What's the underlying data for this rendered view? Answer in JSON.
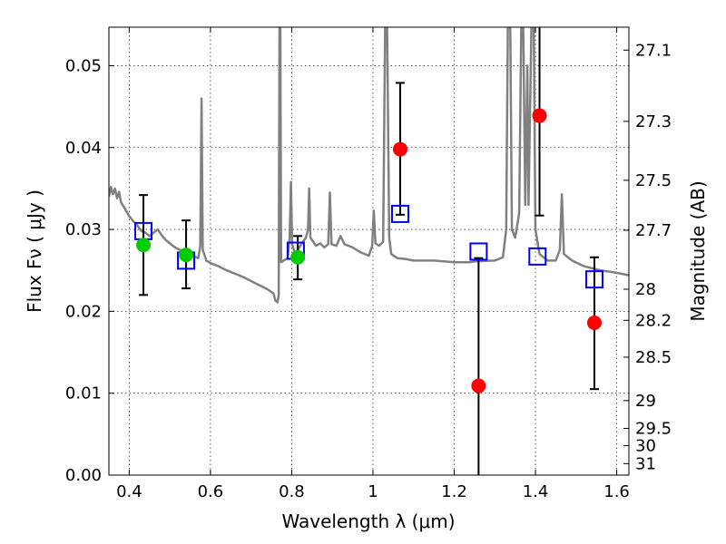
{
  "chart_data": {
    "type": "scatter",
    "xlabel": "Wavelength  λ (μm)",
    "ylabel": "Flux  Fν  ( μJy )",
    "y2label": "Magnitude (AB)",
    "xlim": [
      0.35,
      1.63
    ],
    "ylim": [
      0.0,
      0.0547
    ],
    "x_ticks": [
      0.4,
      0.6,
      0.8,
      1.0,
      1.2,
      1.4,
      1.6
    ],
    "x_tick_labels": [
      "0.4",
      "0.6",
      "0.8",
      "1",
      "1.2",
      "1.4",
      "1.6"
    ],
    "y_ticks": [
      0.0,
      0.01,
      0.02,
      0.03,
      0.04,
      0.05
    ],
    "y_tick_labels": [
      "0.00",
      "0.01",
      "0.02",
      "0.03",
      "0.04",
      "0.05"
    ],
    "y2_ticks": [
      {
        "label": "27.1",
        "flux": 0.0519
      },
      {
        "label": "27.3",
        "flux": 0.0432
      },
      {
        "label": "27.5",
        "flux": 0.036
      },
      {
        "label": "27.7",
        "flux": 0.0299
      },
      {
        "label": "28",
        "flux": 0.0227
      },
      {
        "label": "28.2",
        "flux": 0.0189
      },
      {
        "label": "28.5",
        "flux": 0.0144
      },
      {
        "label": "29",
        "flux": 0.0091
      },
      {
        "label": "29.5",
        "flux": 0.0057
      },
      {
        "label": "30",
        "flux": 0.0036
      },
      {
        "label": "31",
        "flux": 0.0014
      }
    ],
    "grid": true,
    "series": [
      {
        "kind": "line",
        "color": "#808080",
        "points": [
          [
            0.35,
            0.034
          ],
          [
            0.355,
            0.0352
          ],
          [
            0.36,
            0.0343
          ],
          [
            0.365,
            0.035
          ],
          [
            0.37,
            0.0338
          ],
          [
            0.375,
            0.0346
          ],
          [
            0.38,
            0.0333
          ],
          [
            0.39,
            0.0325
          ],
          [
            0.4,
            0.0316
          ],
          [
            0.41,
            0.031
          ],
          [
            0.42,
            0.0305
          ],
          [
            0.43,
            0.0298
          ],
          [
            0.44,
            0.0296
          ],
          [
            0.45,
            0.0292
          ],
          [
            0.46,
            0.0296
          ],
          [
            0.47,
            0.03
          ],
          [
            0.48,
            0.0293
          ],
          [
            0.49,
            0.0287
          ],
          [
            0.5,
            0.0283
          ],
          [
            0.51,
            0.0279
          ],
          [
            0.52,
            0.0276
          ],
          [
            0.53,
            0.0274
          ],
          [
            0.54,
            0.0272
          ],
          [
            0.55,
            0.027
          ],
          [
            0.56,
            0.0267
          ],
          [
            0.57,
            0.0265
          ],
          [
            0.575,
            0.028
          ],
          [
            0.578,
            0.046
          ],
          [
            0.581,
            0.0275
          ],
          [
            0.59,
            0.0262
          ],
          [
            0.6,
            0.0259
          ],
          [
            0.62,
            0.0255
          ],
          [
            0.64,
            0.025
          ],
          [
            0.66,
            0.0246
          ],
          [
            0.68,
            0.0242
          ],
          [
            0.7,
            0.0237
          ],
          [
            0.72,
            0.0232
          ],
          [
            0.74,
            0.0227
          ],
          [
            0.755,
            0.0222
          ],
          [
            0.76,
            0.0213
          ],
          [
            0.765,
            0.0211
          ],
          [
            0.768,
            0.022
          ],
          [
            0.77,
            0.0547
          ],
          [
            0.772,
            0.0547
          ],
          [
            0.774,
            0.026
          ],
          [
            0.78,
            0.0262
          ],
          [
            0.79,
            0.0265
          ],
          [
            0.795,
            0.029
          ],
          [
            0.798,
            0.0358
          ],
          [
            0.801,
            0.0282
          ],
          [
            0.808,
            0.027
          ],
          [
            0.815,
            0.0275
          ],
          [
            0.825,
            0.0283
          ],
          [
            0.835,
            0.029
          ],
          [
            0.84,
            0.03
          ],
          [
            0.843,
            0.035
          ],
          [
            0.846,
            0.029
          ],
          [
            0.86,
            0.028
          ],
          [
            0.87,
            0.0283
          ],
          [
            0.88,
            0.0278
          ],
          [
            0.89,
            0.0282
          ],
          [
            0.894,
            0.0345
          ],
          [
            0.898,
            0.0282
          ],
          [
            0.91,
            0.028
          ],
          [
            0.92,
            0.0292
          ],
          [
            0.93,
            0.0282
          ],
          [
            0.95,
            0.0278
          ],
          [
            0.97,
            0.0272
          ],
          [
            0.99,
            0.0268
          ],
          [
            0.998,
            0.028
          ],
          [
            1.002,
            0.0323
          ],
          [
            1.006,
            0.0283
          ],
          [
            1.015,
            0.028
          ],
          [
            1.025,
            0.0285
          ],
          [
            1.03,
            0.0547
          ],
          [
            1.035,
            0.0547
          ],
          [
            1.04,
            0.029
          ],
          [
            1.045,
            0.027
          ],
          [
            1.06,
            0.0265
          ],
          [
            1.08,
            0.0264
          ],
          [
            1.1,
            0.0262
          ],
          [
            1.15,
            0.0262
          ],
          [
            1.2,
            0.026
          ],
          [
            1.24,
            0.026
          ],
          [
            1.25,
            0.0261
          ],
          [
            1.3,
            0.0262
          ],
          [
            1.32,
            0.0266
          ],
          [
            1.328,
            0.03
          ],
          [
            1.332,
            0.0547
          ],
          [
            1.338,
            0.0547
          ],
          [
            1.342,
            0.03
          ],
          [
            1.35,
            0.029
          ],
          [
            1.36,
            0.032
          ],
          [
            1.365,
            0.0547
          ],
          [
            1.37,
            0.0547
          ],
          [
            1.375,
            0.033
          ],
          [
            1.38,
            0.05
          ],
          [
            1.383,
            0.033
          ],
          [
            1.39,
            0.0547
          ],
          [
            1.396,
            0.0547
          ],
          [
            1.4,
            0.03
          ],
          [
            1.41,
            0.027
          ],
          [
            1.43,
            0.0262
          ],
          [
            1.45,
            0.0262
          ],
          [
            1.46,
            0.0275
          ],
          [
            1.465,
            0.0343
          ],
          [
            1.47,
            0.027
          ],
          [
            1.49,
            0.0262
          ],
          [
            1.52,
            0.0255
          ],
          [
            1.56,
            0.025
          ],
          [
            1.6,
            0.0247
          ],
          [
            1.63,
            0.0244
          ]
        ]
      },
      {
        "kind": "markers",
        "marker": "square",
        "color": "#0000ff",
        "points": [
          [
            0.435,
            0.0298
          ],
          [
            0.54,
            0.0262
          ],
          [
            0.81,
            0.0274
          ],
          [
            1.067,
            0.0319
          ],
          [
            1.26,
            0.0273
          ],
          [
            1.405,
            0.0267
          ],
          [
            1.545,
            0.0239
          ]
        ]
      },
      {
        "kind": "markers",
        "marker": "circle",
        "color": "#00cc00",
        "points": [
          [
            0.435,
            0.0281
          ],
          [
            0.54,
            0.0269
          ],
          [
            0.815,
            0.0266
          ]
        ]
      },
      {
        "kind": "markers",
        "marker": "circle",
        "color": "#ff0000",
        "points": [
          [
            1.067,
            0.0398
          ],
          [
            1.26,
            0.0109
          ],
          [
            1.41,
            0.0439
          ],
          [
            1.545,
            0.0186
          ]
        ]
      },
      {
        "kind": "errorbars",
        "color": "#000000",
        "points": [
          {
            "x": 0.435,
            "lo": 0.022,
            "hi": 0.0342
          },
          {
            "x": 0.54,
            "lo": 0.0228,
            "hi": 0.0311
          },
          {
            "x": 0.815,
            "lo": 0.0239,
            "hi": 0.0292
          },
          {
            "x": 1.067,
            "lo": 0.0318,
            "hi": 0.0479
          },
          {
            "x": 1.26,
            "lo": 0.0,
            "hi": 0.0265
          },
          {
            "x": 1.41,
            "lo": 0.0317,
            "hi": 0.0547
          },
          {
            "x": 1.545,
            "lo": 0.0105,
            "hi": 0.0266
          }
        ]
      }
    ]
  }
}
